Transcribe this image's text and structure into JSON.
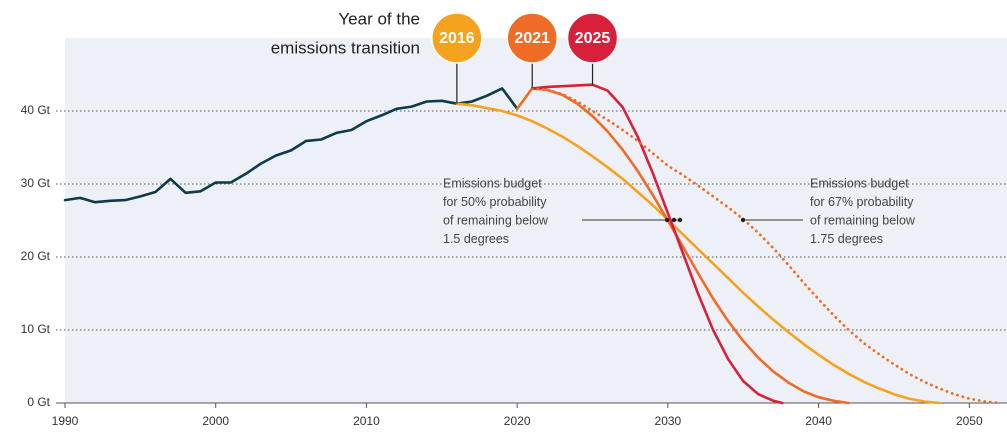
{
  "chart_data": {
    "type": "line",
    "badge_title_lines": [
      "Year of the",
      "emissions transition"
    ],
    "xlim": [
      1990,
      2052.5
    ],
    "ylim": [
      0,
      50
    ],
    "xticks": [
      1990,
      2000,
      2010,
      2020,
      2030,
      2040,
      2050
    ],
    "yticks": [
      {
        "value": 0,
        "label": "0 Gt"
      },
      {
        "value": 10,
        "label": "10 Gt"
      },
      {
        "value": 20,
        "label": "20 Gt"
      },
      {
        "value": 30,
        "label": "30 Gt"
      },
      {
        "value": 40,
        "label": "40 Gt"
      }
    ],
    "grid": true,
    "series": [
      {
        "color": "#0d3b4a",
        "style": "solid",
        "x": [
          1990,
          1991,
          1992,
          1993,
          1994,
          1995,
          1996,
          1997,
          1998,
          1999,
          2000,
          2001,
          2002,
          2003,
          2004,
          2005,
          2006,
          2007,
          2008,
          2009,
          2010,
          2011,
          2012,
          2013,
          2014,
          2015,
          2016,
          2017,
          2018,
          2019,
          2020
        ],
        "values": [
          27.8,
          28.1,
          27.5,
          27.7,
          27.8,
          28.3,
          28.9,
          30.7,
          28.8,
          29.0,
          30.2,
          30.2,
          31.4,
          32.8,
          33.9,
          34.6,
          35.9,
          36.1,
          37.0,
          37.4,
          38.6,
          39.4,
          40.3,
          40.6,
          41.3,
          41.4,
          41.0,
          41.3,
          42.1,
          43.1,
          40.3
        ]
      },
      {
        "name": "2016",
        "color": "#f5a21f",
        "style": "solid",
        "x": [
          2016,
          2017,
          2018,
          2019,
          2020,
          2021,
          2022,
          2023,
          2024,
          2025,
          2026,
          2027,
          2028,
          2029,
          2030,
          2031,
          2032,
          2033,
          2034,
          2035,
          2036,
          2037,
          2038,
          2039,
          2040,
          2041,
          2042,
          2043,
          2044,
          2045,
          2046,
          2047,
          2048
        ],
        "values": [
          41.0,
          40.8,
          40.4,
          40.0,
          39.4,
          38.6,
          37.6,
          36.5,
          35.2,
          33.8,
          32.3,
          30.7,
          28.9,
          27.1,
          25.1,
          23.1,
          21.1,
          19.1,
          17.1,
          15.1,
          13.2,
          11.4,
          9.7,
          8.1,
          6.6,
          5.2,
          4.0,
          2.9,
          2.0,
          1.2,
          0.6,
          0.2,
          0
        ]
      },
      {
        "name": "2021",
        "color": "#ef6c27",
        "style": "solid",
        "x": [
          2020,
          2021,
          2022,
          2023,
          2024,
          2025,
          2026,
          2027,
          2028,
          2029,
          2030,
          2031,
          2032,
          2033,
          2034,
          2035,
          2036,
          2037,
          2038,
          2039,
          2040,
          2041,
          2042
        ],
        "values": [
          40.3,
          43.1,
          42.9,
          42.2,
          41.0,
          39.3,
          37.2,
          34.7,
          31.8,
          28.5,
          25.0,
          21.4,
          17.8,
          14.3,
          11.2,
          8.5,
          6.2,
          4.3,
          2.8,
          1.6,
          0.8,
          0.3,
          0
        ]
      },
      {
        "name": "2025",
        "color": "#d9203a",
        "style": "solid",
        "x": [
          2021,
          2022,
          2023,
          2024,
          2025,
          2026,
          2027,
          2028,
          2029,
          2030,
          2031,
          2032,
          2033,
          2034,
          2035,
          2036,
          2037,
          2037.6
        ],
        "values": [
          43.1,
          43.3,
          43.4,
          43.5,
          43.6,
          42.8,
          40.5,
          36.5,
          31.5,
          26.0,
          20.5,
          15.0,
          10.0,
          6.0,
          3.0,
          1.2,
          0.3,
          0
        ]
      },
      {
        "color": "#ef6c27",
        "style": "dotted",
        "x": [
          2021,
          2022,
          2023,
          2024,
          2025,
          2026,
          2027,
          2028,
          2029,
          2030,
          2031,
          2032,
          2033,
          2034,
          2035,
          2036,
          2037,
          2038,
          2039,
          2040,
          2041,
          2042,
          2043,
          2044,
          2045,
          2046,
          2047,
          2048,
          2049,
          2050,
          2051,
          2052
        ],
        "values": [
          43.1,
          42.9,
          42.3,
          41.3,
          40.0,
          38.8,
          37.4,
          35.9,
          34.2,
          32.5,
          31.2,
          29.8,
          28.3,
          26.8,
          25.2,
          23.3,
          21.2,
          18.9,
          16.5,
          14.2,
          12.0,
          10.0,
          8.2,
          6.7,
          5.3,
          4.0,
          2.9,
          2.0,
          1.2,
          0.6,
          0.2,
          0
        ]
      }
    ],
    "annotations": [
      {
        "lines": [
          "Emissions budget",
          "for 50% probability",
          "of remaining below",
          "1.5 degrees"
        ]
      },
      {
        "lines": [
          "Emissions budget",
          "for 67% probability",
          "of remaining below",
          "1.75 degrees"
        ]
      }
    ]
  }
}
